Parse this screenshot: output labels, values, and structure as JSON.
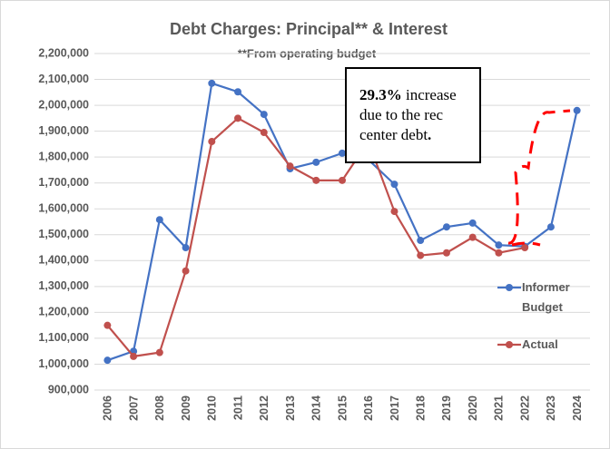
{
  "chart_data": {
    "type": "line",
    "title": "Debt Charges: Principal** & Interest",
    "subtitle": "**From operating budget",
    "annotation": [
      {
        "text": "29.3%",
        "bold": true
      },
      {
        "text": " increase due to the  rec center debt",
        "bold": false
      },
      {
        "text": ".",
        "bold": true
      }
    ],
    "categories": [
      "2006",
      "2007",
      "2008",
      "2009",
      "2010",
      "2011",
      "2012",
      "2013",
      "2014",
      "2015",
      "2016",
      "2017",
      "2018",
      "2019",
      "2020",
      "2021",
      "2022",
      "2023",
      "2024"
    ],
    "series": [
      {
        "name": "Informer Budget",
        "color": "#4472c4",
        "values": [
          1015000,
          1050000,
          1558000,
          1450000,
          2085000,
          2052000,
          1965000,
          1755000,
          1780000,
          1815000,
          1790000,
          1695000,
          1478000,
          1530000,
          1545000,
          1460000,
          1455000,
          1530000,
          1980000
        ]
      },
      {
        "name": "Actual",
        "color": "#c0504d",
        "values": [
          1150000,
          1030000,
          1045000,
          1360000,
          1860000,
          1950000,
          1895000,
          1765000,
          1710000,
          1710000,
          1860000,
          1590000,
          1420000,
          1430000,
          1490000,
          1430000,
          1450000,
          null,
          null
        ]
      }
    ],
    "ylim": [
      900000,
      2200000
    ],
    "yticks": [
      {
        "value": 900000,
        "label": "900,000"
      },
      {
        "value": 1000000,
        "label": "1,000,000"
      },
      {
        "value": 1100000,
        "label": "1,100,000"
      },
      {
        "value": 1200000,
        "label": "1,200,000"
      },
      {
        "value": 1300000,
        "label": "1,300,000"
      },
      {
        "value": 1400000,
        "label": "1,400,000"
      },
      {
        "value": 1500000,
        "label": "1,500,000"
      },
      {
        "value": 1600000,
        "label": "1,600,000"
      },
      {
        "value": 1700000,
        "label": "1,700,000"
      },
      {
        "value": 1800000,
        "label": "1,800,000"
      },
      {
        "value": 1900000,
        "label": "1,900,000"
      },
      {
        "value": 2000000,
        "label": "2,000,000"
      },
      {
        "value": 2100000,
        "label": "2,100,000"
      },
      {
        "value": 2200000,
        "label": "2,200,000"
      }
    ],
    "grid": true,
    "legend": "right"
  }
}
